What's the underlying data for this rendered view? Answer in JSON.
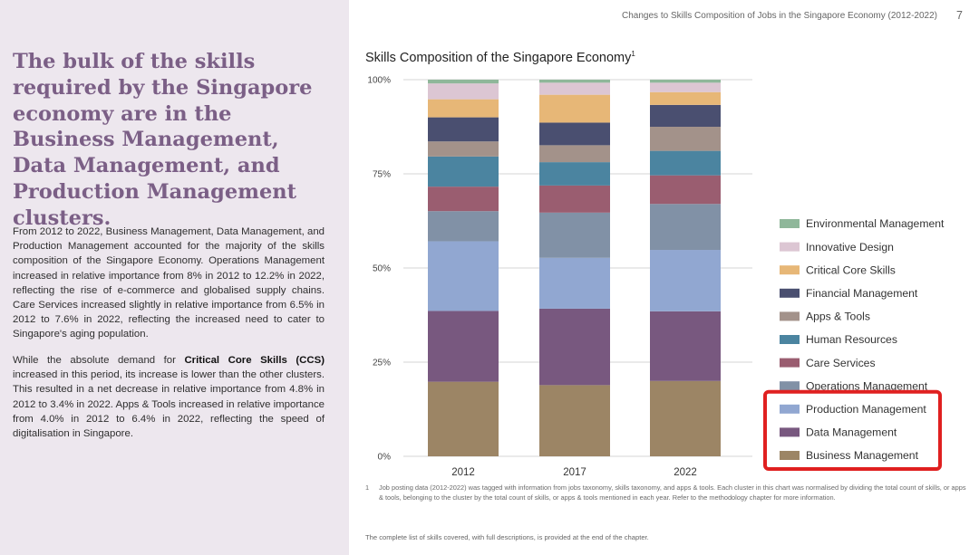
{
  "page": {
    "header": "Changes to Skills Composition of Jobs in the Singapore Economy (2012-2022)",
    "page_number": "7"
  },
  "left": {
    "headline": "The bulk of the skills required by the Singapore economy are in the Business Management, Data Management, and Production Management clusters.",
    "para1": "From 2012 to 2022, Business Management, Data Management, and Production Management accounted for the majority of the skills composition of the Singapore Economy. Operations Management increased in relative importance from 8% in 2012 to 12.2% in 2022, reflecting the rise of e-commerce and globalised supply chains. Care Services increased slightly in relative importance from 6.5% in 2012 to 7.6% in 2022, reflecting the increased need to cater to Singapore's aging population.",
    "para2_prefix": "While the absolute demand for ",
    "para2_bold": "Critical Core Skills (CCS)",
    "para2_suffix": " increased in this period, its increase is lower than the other clusters. This resulted in a net decrease in relative importance from 4.8% in 2012 to 3.4% in 2022. Apps & Tools increased in relative importance from 4.0% in 2012 to 6.4% in 2022, reflecting the speed of digitalisation in Singapore."
  },
  "chart_data": {
    "type": "bar",
    "stacked": true,
    "title": "Skills Composition of the Singapore Economy",
    "title_footnote_marker": "1",
    "categories": [
      "2012",
      "2017",
      "2022"
    ],
    "ylim": [
      0,
      100
    ],
    "yticks": [
      "0%",
      "25%",
      "50%",
      "75%",
      "100%"
    ],
    "grid": true,
    "legend_position": "right",
    "series": [
      {
        "name": "Business Management",
        "color": "#9c8565",
        "values": [
          19.8,
          18.9,
          20.0
        ]
      },
      {
        "name": "Data Management",
        "color": "#78587f",
        "values": [
          18.8,
          20.3,
          18.5
        ]
      },
      {
        "name": "Production Management",
        "color": "#91a7d1",
        "values": [
          18.5,
          13.5,
          16.3
        ]
      },
      {
        "name": "Operations Management",
        "color": "#8191a6",
        "values": [
          8.0,
          12.0,
          12.2
        ]
      },
      {
        "name": "Care Services",
        "color": "#9a5d70",
        "values": [
          6.5,
          7.2,
          7.6
        ]
      },
      {
        "name": "Human Resources",
        "color": "#4b84a0",
        "values": [
          8.0,
          6.2,
          6.5
        ]
      },
      {
        "name": "Apps & Tools",
        "color": "#a3928a",
        "values": [
          4.0,
          4.5,
          6.4
        ]
      },
      {
        "name": "Financial Management",
        "color": "#4a4f70",
        "values": [
          6.4,
          6.0,
          5.8
        ]
      },
      {
        "name": "Critical Core Skills",
        "color": "#e7b777",
        "values": [
          4.8,
          7.4,
          3.4
        ]
      },
      {
        "name": "Innovative Design",
        "color": "#dcc6d3",
        "values": [
          4.2,
          3.2,
          2.5
        ]
      },
      {
        "name": "Environmental Management",
        "color": "#8fb79a",
        "values": [
          1.0,
          0.8,
          0.8
        ]
      }
    ],
    "highlight_legend_items": [
      "Production Management",
      "Data Management",
      "Business Management"
    ],
    "highlight_color": "#e02020"
  },
  "footnote": {
    "number": "1",
    "text": "Job posting data (2012-2022) was tagged with information from jobs taxonomy, skills taxonomy, and apps & tools. Each cluster in this chart was normalised by dividing the total count of skills, or apps & tools, belonging to the cluster by the total count of skills, or apps & tools mentioned in each year. Refer to the methodology chapter for more information."
  },
  "bottom_note": "The complete list of skills covered, with full descriptions, is provided at the end of the chapter."
}
